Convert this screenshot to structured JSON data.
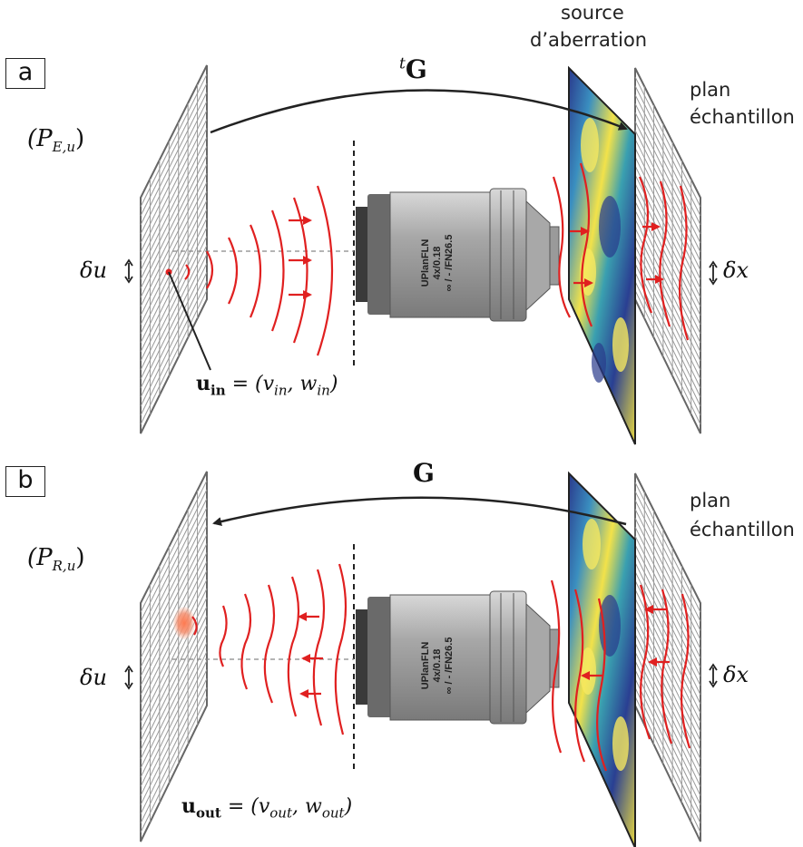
{
  "panel_a": {
    "label": "a",
    "source_label_line1": "source",
    "source_label_line2": "d’aberration",
    "plane_label_line1": "plan",
    "plane_label_line2": "échantillon",
    "operator": "G",
    "operator_prefix": "t",
    "plane_symbol": "(P",
    "plane_sub": "E,u",
    "plane_close": ")",
    "delta_u": "δu",
    "delta_x": "δx",
    "point_vec": "u",
    "point_sub": "in",
    "point_eq": " = (v",
    "point_v_sub": "in",
    "point_comma": ", w",
    "point_w_sub": "in",
    "point_close": ")"
  },
  "panel_b": {
    "label": "b",
    "plane_label_line1": "plan",
    "plane_label_line2": "échantillon",
    "operator": "G",
    "plane_symbol": "(P",
    "plane_sub": "R,u",
    "plane_close": ")",
    "delta_u": "δu",
    "delta_x": "δx",
    "point_vec": "u",
    "point_sub": "out",
    "point_eq": " = (v",
    "point_v_sub": "out",
    "point_comma": ", w",
    "point_w_sub": "out",
    "point_close": ")"
  },
  "objective": {
    "line1": "UPlanFLN",
    "line2": "4x/0.18",
    "line3": "∞ / - /FN26.5"
  },
  "colors": {
    "wave": "#e02020",
    "grid": "#8a8a8a",
    "lens_body": "#9a9a9a",
    "lens_dark": "#3a3a3a",
    "arrow": "#222222"
  }
}
